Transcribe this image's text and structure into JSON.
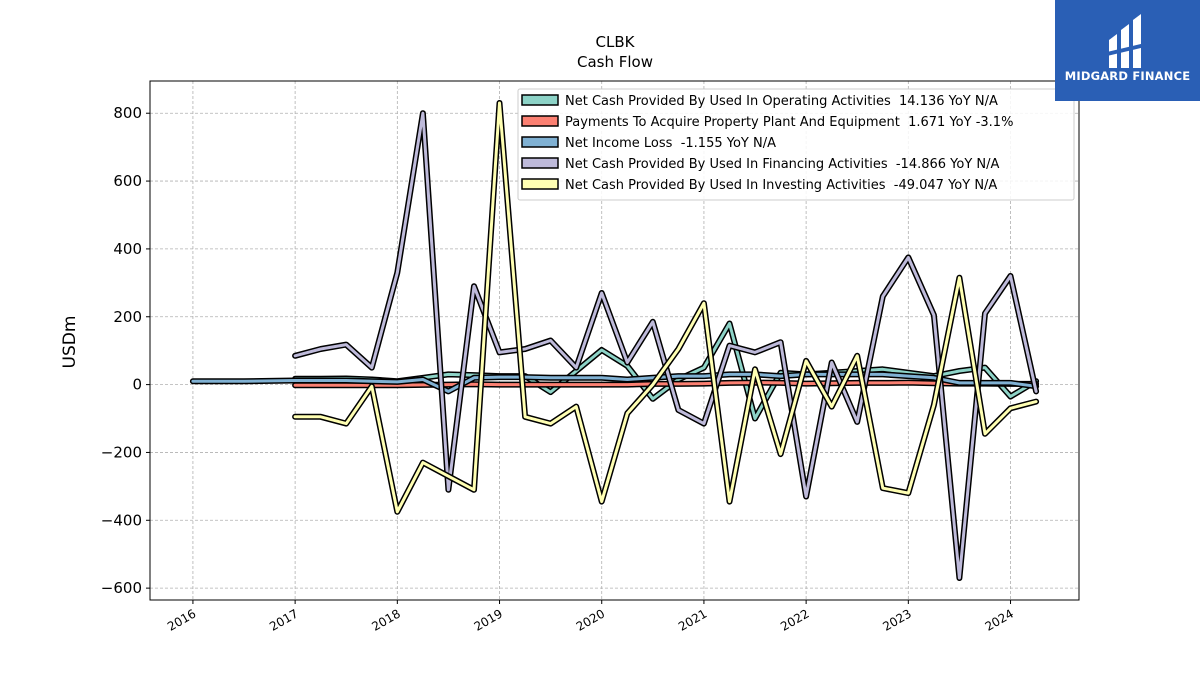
{
  "logo": {
    "text": "MIDGARD FINANCE",
    "background": "#2a5fb5",
    "icon": "midgard-logo-icon"
  },
  "chart_data": {
    "type": "line",
    "title": "CLBK",
    "subtitle": "Cash Flow",
    "ylabel": "USDm",
    "xlabel": "",
    "ylim": [
      -635,
      895
    ],
    "xlim": [
      2015.58,
      2024.67
    ],
    "yticks": [
      -600,
      -400,
      -200,
      0,
      200,
      400,
      600,
      800
    ],
    "ytick_labels": [
      "−600",
      "−400",
      "−200",
      "0",
      "200",
      "400",
      "600",
      "800"
    ],
    "xticks": [
      2016,
      2017,
      2018,
      2019,
      2020,
      2021,
      2022,
      2023,
      2024
    ],
    "xtick_labels": [
      "2016",
      "2017",
      "2018",
      "2019",
      "2020",
      "2021",
      "2022",
      "2023",
      "2024"
    ],
    "grid": true,
    "legend_position": "top-right",
    "series": [
      {
        "name": "Net Cash Provided By Used In Operating Activities  14.136 YoY N/A",
        "color": "#8dd3c7",
        "points": [
          [
            2017.0,
            17
          ],
          [
            2017.25,
            17
          ],
          [
            2017.5,
            18
          ],
          [
            2017.75,
            15
          ],
          [
            2018.0,
            10
          ],
          [
            2018.25,
            20
          ],
          [
            2018.5,
            30
          ],
          [
            2018.75,
            28
          ],
          [
            2019.0,
            25
          ],
          [
            2019.25,
            25
          ],
          [
            2019.5,
            -22
          ],
          [
            2019.75,
            40
          ],
          [
            2020.0,
            102
          ],
          [
            2020.25,
            55
          ],
          [
            2020.5,
            -42
          ],
          [
            2020.75,
            15
          ],
          [
            2021.0,
            50
          ],
          [
            2021.25,
            180
          ],
          [
            2021.5,
            -100
          ],
          [
            2021.75,
            35
          ],
          [
            2022.0,
            30
          ],
          [
            2022.25,
            35
          ],
          [
            2022.5,
            40
          ],
          [
            2022.75,
            45
          ],
          [
            2023.0,
            35
          ],
          [
            2023.25,
            25
          ],
          [
            2023.5,
            40
          ],
          [
            2023.75,
            50
          ],
          [
            2024.0,
            -35
          ],
          [
            2024.25,
            10
          ]
        ]
      },
      {
        "name": "Payments To Acquire Property Plant And Equipment  1.671 YoY -3.1%",
        "color": "#fb8072",
        "points": [
          [
            2017.0,
            -2
          ],
          [
            2017.25,
            -2
          ],
          [
            2017.5,
            -2
          ],
          [
            2017.75,
            -2
          ],
          [
            2018.0,
            -2
          ],
          [
            2018.25,
            -1
          ],
          [
            2018.5,
            0
          ],
          [
            2018.75,
            1
          ],
          [
            2019.0,
            0
          ],
          [
            2019.25,
            0
          ],
          [
            2019.5,
            0
          ],
          [
            2019.75,
            0
          ],
          [
            2020.0,
            0
          ],
          [
            2020.25,
            0
          ],
          [
            2020.5,
            2
          ],
          [
            2020.75,
            2
          ],
          [
            2021.0,
            3
          ],
          [
            2021.25,
            5
          ],
          [
            2021.5,
            6
          ],
          [
            2021.75,
            5
          ],
          [
            2022.0,
            3
          ],
          [
            2022.25,
            4
          ],
          [
            2022.5,
            5
          ],
          [
            2022.75,
            5
          ],
          [
            2023.0,
            6
          ],
          [
            2023.25,
            4
          ],
          [
            2023.5,
            3
          ],
          [
            2023.75,
            3
          ],
          [
            2024.0,
            2
          ],
          [
            2024.25,
            2
          ]
        ]
      },
      {
        "name": "Net Income Loss  -1.155 YoY N/A",
        "color": "#80b1d3",
        "points": [
          [
            2016.0,
            10
          ],
          [
            2016.25,
            10
          ],
          [
            2016.5,
            10
          ],
          [
            2016.75,
            11
          ],
          [
            2017.0,
            12
          ],
          [
            2017.25,
            12
          ],
          [
            2017.5,
            12
          ],
          [
            2017.75,
            10
          ],
          [
            2018.0,
            8
          ],
          [
            2018.25,
            15
          ],
          [
            2018.5,
            -20
          ],
          [
            2018.75,
            20
          ],
          [
            2019.0,
            22
          ],
          [
            2019.25,
            22
          ],
          [
            2019.5,
            20
          ],
          [
            2019.75,
            20
          ],
          [
            2020.0,
            20
          ],
          [
            2020.25,
            15
          ],
          [
            2020.5,
            20
          ],
          [
            2020.75,
            25
          ],
          [
            2021.0,
            25
          ],
          [
            2021.25,
            30
          ],
          [
            2021.5,
            30
          ],
          [
            2021.75,
            25
          ],
          [
            2022.0,
            30
          ],
          [
            2022.25,
            30
          ],
          [
            2022.5,
            30
          ],
          [
            2022.75,
            30
          ],
          [
            2023.0,
            25
          ],
          [
            2023.25,
            20
          ],
          [
            2023.5,
            5
          ],
          [
            2023.75,
            5
          ],
          [
            2024.0,
            5
          ],
          [
            2024.25,
            -5
          ]
        ]
      },
      {
        "name": "Net Cash Provided By Used In Financing Activities  -14.866 YoY N/A",
        "color": "#bebada",
        "points": [
          [
            2017.0,
            85
          ],
          [
            2017.25,
            105
          ],
          [
            2017.5,
            118
          ],
          [
            2017.75,
            50
          ],
          [
            2018.0,
            330
          ],
          [
            2018.25,
            800
          ],
          [
            2018.5,
            -310
          ],
          [
            2018.75,
            290
          ],
          [
            2019.0,
            95
          ],
          [
            2019.25,
            105
          ],
          [
            2019.5,
            130
          ],
          [
            2019.75,
            50
          ],
          [
            2020.0,
            270
          ],
          [
            2020.25,
            65
          ],
          [
            2020.5,
            185
          ],
          [
            2020.75,
            -75
          ],
          [
            2021.0,
            -115
          ],
          [
            2021.25,
            115
          ],
          [
            2021.5,
            95
          ],
          [
            2021.75,
            125
          ],
          [
            2022.0,
            -330
          ],
          [
            2022.25,
            65
          ],
          [
            2022.5,
            -110
          ],
          [
            2022.75,
            260
          ],
          [
            2023.0,
            375
          ],
          [
            2023.25,
            205
          ],
          [
            2023.5,
            -570
          ],
          [
            2023.75,
            210
          ],
          [
            2024.0,
            320
          ],
          [
            2024.25,
            -20
          ]
        ]
      },
      {
        "name": "Net Cash Provided By Used In Investing Activities  -49.047 YoY N/A",
        "color": "#ffffb3",
        "points": [
          [
            2017.0,
            -95
          ],
          [
            2017.25,
            -95
          ],
          [
            2017.5,
            -115
          ],
          [
            2017.75,
            -5
          ],
          [
            2018.0,
            -375
          ],
          [
            2018.25,
            -230
          ],
          [
            2018.5,
            -270
          ],
          [
            2018.75,
            -310
          ],
          [
            2019.0,
            830
          ],
          [
            2019.25,
            -95
          ],
          [
            2019.5,
            -115
          ],
          [
            2019.75,
            -65
          ],
          [
            2020.0,
            -345
          ],
          [
            2020.25,
            -85
          ],
          [
            2020.5,
            0
          ],
          [
            2020.75,
            105
          ],
          [
            2021.0,
            240
          ],
          [
            2021.25,
            -345
          ],
          [
            2021.5,
            45
          ],
          [
            2021.75,
            -205
          ],
          [
            2022.0,
            70
          ],
          [
            2022.25,
            -65
          ],
          [
            2022.5,
            85
          ],
          [
            2022.75,
            -305
          ],
          [
            2023.0,
            -320
          ],
          [
            2023.25,
            -60
          ],
          [
            2023.5,
            315
          ],
          [
            2023.75,
            -145
          ],
          [
            2024.0,
            -70
          ],
          [
            2024.25,
            -50
          ]
        ]
      }
    ]
  }
}
